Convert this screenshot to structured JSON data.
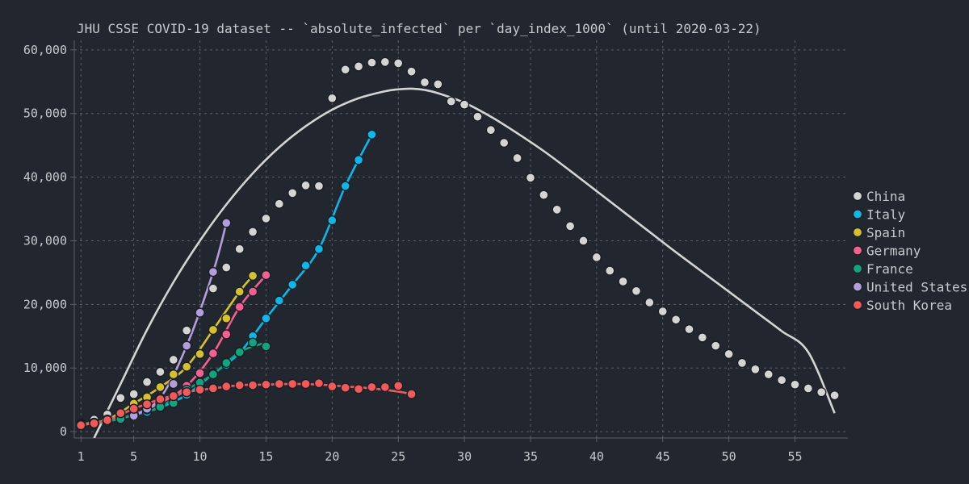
{
  "chart_data": {
    "type": "scatter",
    "title": "JHU CSSE COVID-19 dataset -- `absolute_infected` per `day_index_1000` (until 2020-03-22)",
    "xlabel": "",
    "ylabel": "",
    "xlim": [
      0.5,
      59
    ],
    "ylim": [
      -1000,
      61500
    ],
    "x_ticks": [
      1,
      5,
      10,
      15,
      20,
      25,
      30,
      35,
      40,
      45,
      50,
      55
    ],
    "y_ticks": [
      0,
      10000,
      20000,
      30000,
      40000,
      50000,
      60000
    ],
    "x_tick_labels": [
      "1",
      "5",
      "10",
      "15",
      "20",
      "25",
      "30",
      "35",
      "40",
      "45",
      "50",
      "55"
    ],
    "y_tick_labels": [
      "0",
      "10,000",
      "20,000",
      "30,000",
      "40,000",
      "50,000",
      "60,000"
    ],
    "grid": true,
    "legend_position": "right",
    "series": [
      {
        "name": "China",
        "color": "#d4d4d4",
        "x": [
          1,
          2,
          3,
          4,
          5,
          6,
          7,
          8,
          9,
          10,
          11,
          12,
          13,
          14,
          15,
          16,
          17,
          18,
          19,
          20,
          21,
          22,
          23,
          24,
          25,
          26,
          27,
          28,
          29,
          30,
          31,
          32,
          33,
          34,
          35,
          36,
          37,
          38,
          39,
          40,
          41,
          42,
          43,
          44,
          45,
          46,
          47,
          48,
          49,
          50,
          51,
          52,
          53,
          54,
          55,
          56,
          57,
          58
        ],
        "y": [
          1300,
          1900,
          2700,
          5300,
          5900,
          7800,
          9400,
          11300,
          15900,
          18700,
          22500,
          25800,
          28700,
          31400,
          33500,
          35800,
          37500,
          38700,
          38600,
          52400,
          56900,
          57400,
          58000,
          58100,
          57900,
          56600,
          54900,
          54600,
          51900,
          51400,
          49500,
          47400,
          45400,
          43000,
          39900,
          37200,
          34900,
          32300,
          30000,
          27400,
          25300,
          23600,
          22100,
          20300,
          18900,
          17600,
          16100,
          14800,
          13500,
          12200,
          10800,
          9800,
          9000,
          8100,
          7400,
          6800,
          6200,
          5700
        ],
        "fit": {
          "x": [
            2,
            4,
            6,
            8,
            10,
            12,
            14,
            16,
            18,
            20,
            22,
            24,
            25,
            26,
            27,
            28,
            30,
            32,
            34,
            36,
            38,
            40,
            42,
            44,
            46,
            48,
            50,
            52,
            54,
            56,
            58
          ],
          "y": [
            -1000,
            7500,
            16000,
            23500,
            30000,
            35700,
            40600,
            44700,
            48000,
            50600,
            52400,
            53500,
            53800,
            53900,
            53700,
            53200,
            51700,
            49500,
            46900,
            44100,
            41000,
            37800,
            34600,
            31400,
            28200,
            25100,
            22000,
            18900,
            15800,
            12500,
            2900
          ]
        }
      },
      {
        "name": "Italy",
        "color": "#12b5e5",
        "x": [
          1,
          2,
          3,
          4,
          5,
          6,
          7,
          8,
          9,
          10,
          11,
          12,
          13,
          14,
          15,
          16,
          17,
          18,
          19,
          20,
          21,
          22,
          23
        ],
        "y": [
          1200,
          1400,
          1700,
          2100,
          2600,
          3100,
          3800,
          4600,
          5800,
          7400,
          9100,
          10500,
          12400,
          15000,
          17800,
          20600,
          23100,
          26100,
          28700,
          33200,
          38600,
          42700,
          46700
        ],
        "fit": {
          "x": [
            1,
            3,
            5,
            7,
            9,
            11,
            13,
            15,
            17,
            19,
            21,
            23
          ],
          "y": [
            1200,
            1700,
            2600,
            3800,
            5800,
            9100,
            12400,
            17800,
            23100,
            28700,
            38600,
            46700
          ]
        }
      },
      {
        "name": "Spain",
        "color": "#d4c133",
        "x": [
          1,
          2,
          3,
          4,
          5,
          6,
          7,
          8,
          9,
          10,
          11,
          12,
          13,
          14
        ],
        "y": [
          1100,
          1400,
          1900,
          2600,
          4400,
          5400,
          7000,
          9000,
          10200,
          12200,
          16000,
          17800,
          22000,
          24500
        ],
        "fit": {
          "x": [
            1,
            3,
            5,
            7,
            9,
            11,
            13,
            14
          ],
          "y": [
            1100,
            1900,
            4400,
            7000,
            10200,
            16000,
            22000,
            24500
          ]
        }
      },
      {
        "name": "Germany",
        "color": "#f06292",
        "x": [
          1,
          2,
          3,
          4,
          5,
          6,
          7,
          8,
          9,
          10,
          11,
          12,
          13,
          14,
          15
        ],
        "y": [
          1100,
          1300,
          1600,
          2200,
          2700,
          3600,
          4500,
          5600,
          7200,
          9200,
          12300,
          15300,
          19600,
          22000,
          24600
        ],
        "fit": {
          "x": [
            1,
            3,
            5,
            7,
            9,
            11,
            13,
            15
          ],
          "y": [
            1100,
            1600,
            2700,
            4500,
            7200,
            12300,
            19600,
            24600
          ]
        }
      },
      {
        "name": "France",
        "color": "#14a37f",
        "x": [
          1,
          2,
          3,
          4,
          5,
          6,
          7,
          8,
          9,
          10,
          11,
          12,
          13,
          14,
          15
        ],
        "y": [
          1100,
          1200,
          1600,
          2000,
          2600,
          3500,
          3900,
          4500,
          6600,
          7700,
          9000,
          10800,
          12500,
          14000,
          13400
        ],
        "fit": {
          "x": [
            1,
            3,
            5,
            7,
            9,
            11,
            13,
            15
          ],
          "y": [
            1100,
            1600,
            2600,
            3900,
            6600,
            9000,
            12500,
            14000
          ]
        }
      },
      {
        "name": "United States",
        "color": "#b39ddb",
        "x": [
          5,
          6,
          7,
          8,
          9,
          10,
          11,
          12
        ],
        "y": [
          2500,
          3600,
          5300,
          7500,
          13500,
          18700,
          25100,
          32800
        ],
        "fit": {
          "x": [
            5,
            7,
            9,
            11,
            12
          ],
          "y": [
            2500,
            5300,
            13500,
            25100,
            32800
          ]
        }
      },
      {
        "name": "South Korea",
        "color": "#ef5b5b",
        "x": [
          1,
          2,
          3,
          4,
          5,
          6,
          7,
          8,
          9,
          10,
          11,
          12,
          13,
          14,
          15,
          16,
          17,
          18,
          19,
          20,
          21,
          22,
          23,
          24,
          25,
          26
        ],
        "y": [
          1000,
          1300,
          1800,
          2900,
          3600,
          4300,
          5100,
          5600,
          6200,
          6600,
          6800,
          7100,
          7300,
          7300,
          7400,
          7500,
          7500,
          7500,
          7600,
          7100,
          6900,
          6700,
          7000,
          7000,
          7200,
          5900
        ],
        "fit": {
          "x": [
            1,
            3,
            5,
            7,
            9,
            11,
            13,
            15,
            17,
            19,
            21,
            23,
            25,
            26
          ],
          "y": [
            1000,
            1800,
            3600,
            5100,
            6200,
            6800,
            7300,
            7400,
            7500,
            7400,
            7100,
            6800,
            6300,
            5900
          ]
        }
      }
    ]
  }
}
